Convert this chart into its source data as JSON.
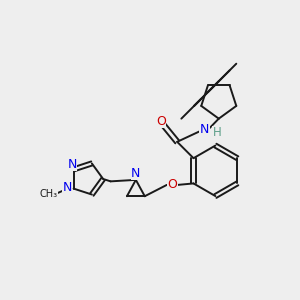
{
  "bg_color": "#eeeeee",
  "bond_color": "#1a1a1a",
  "N_color": "#0000ee",
  "O_color": "#cc0000",
  "H_color": "#5fa08a",
  "figsize": [
    3.0,
    3.0
  ],
  "dpi": 100,
  "xlim": [
    0,
    10
  ],
  "ylim": [
    0,
    10
  ]
}
